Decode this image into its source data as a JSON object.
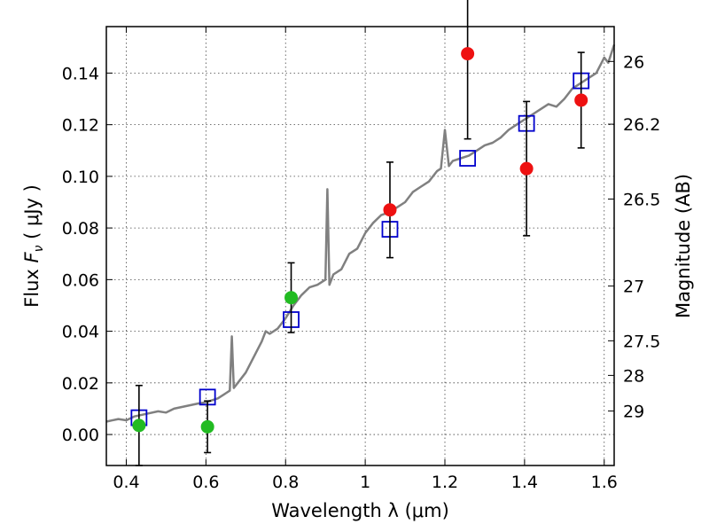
{
  "chart_data": {
    "type": "scatter",
    "title": "",
    "xlabel": "Wavelength  λ (μm)",
    "ylabel": "Flux  F_ν  ( μJy )",
    "ylabel_right": "Magnitude (AB)",
    "xlim": [
      0.35,
      1.625
    ],
    "ylim": [
      -0.012,
      0.158
    ],
    "grid": true,
    "x_ticks": [
      0.4,
      0.6,
      0.8,
      1.0,
      1.2,
      1.4,
      1.6
    ],
    "x_tick_labels": [
      "0.4",
      "0.6",
      "0.8",
      "1",
      "1.2",
      "1.4",
      "1.6"
    ],
    "y_ticks": [
      0.0,
      0.02,
      0.04,
      0.06,
      0.08,
      0.1,
      0.12,
      0.14
    ],
    "y_tick_labels": [
      "0.00",
      "0.02",
      "0.04",
      "0.06",
      "0.08",
      "0.10",
      "0.12",
      "0.14"
    ],
    "right_ticks": [
      {
        "label": "26",
        "flux": 0.1445
      },
      {
        "label": "26.2",
        "flux": 0.1202
      },
      {
        "label": "26.5",
        "flux": 0.0912
      },
      {
        "label": "27",
        "flux": 0.0575
      },
      {
        "label": "27.5",
        "flux": 0.0363
      },
      {
        "label": "28",
        "flux": 0.0229
      },
      {
        "label": "29",
        "flux": 0.0091
      }
    ],
    "model_spectrum": {
      "color": "#808080",
      "x": [
        0.35,
        0.38,
        0.4,
        0.42,
        0.45,
        0.48,
        0.5,
        0.52,
        0.55,
        0.58,
        0.6,
        0.63,
        0.65,
        0.66,
        0.665,
        0.67,
        0.68,
        0.7,
        0.72,
        0.74,
        0.75,
        0.76,
        0.78,
        0.8,
        0.82,
        0.84,
        0.86,
        0.88,
        0.9,
        0.905,
        0.91,
        0.915,
        0.92,
        0.94,
        0.96,
        0.98,
        1.0,
        1.02,
        1.04,
        1.06,
        1.08,
        1.1,
        1.12,
        1.14,
        1.16,
        1.18,
        1.19,
        1.2,
        1.21,
        1.22,
        1.24,
        1.26,
        1.28,
        1.3,
        1.32,
        1.34,
        1.36,
        1.38,
        1.4,
        1.42,
        1.44,
        1.46,
        1.48,
        1.5,
        1.52,
        1.54,
        1.56,
        1.58,
        1.6,
        1.61,
        1.625
      ],
      "y": [
        0.005,
        0.006,
        0.0055,
        0.007,
        0.008,
        0.009,
        0.0085,
        0.01,
        0.011,
        0.012,
        0.0125,
        0.014,
        0.016,
        0.017,
        0.038,
        0.018,
        0.02,
        0.024,
        0.03,
        0.036,
        0.04,
        0.039,
        0.041,
        0.045,
        0.05,
        0.054,
        0.057,
        0.058,
        0.06,
        0.095,
        0.058,
        0.06,
        0.062,
        0.064,
        0.07,
        0.072,
        0.078,
        0.082,
        0.085,
        0.086,
        0.088,
        0.09,
        0.094,
        0.096,
        0.098,
        0.102,
        0.103,
        0.118,
        0.104,
        0.106,
        0.107,
        0.108,
        0.11,
        0.112,
        0.113,
        0.115,
        0.118,
        0.12,
        0.122,
        0.124,
        0.126,
        0.128,
        0.127,
        0.13,
        0.134,
        0.136,
        0.138,
        0.14,
        0.146,
        0.144,
        0.151
      ]
    },
    "model_boxes": {
      "color": "#0000cc",
      "x": [
        0.432,
        0.604,
        0.814,
        1.062,
        1.257,
        1.405,
        1.542
      ],
      "y": [
        0.0065,
        0.0145,
        0.0445,
        0.0795,
        0.107,
        0.1205,
        0.137
      ]
    },
    "observed_optical": {
      "color": "#22bb22",
      "x": [
        0.432,
        0.604,
        0.814
      ],
      "y": [
        0.0035,
        0.003,
        0.053
      ],
      "err": [
        0.0155,
        0.01,
        0.0135
      ]
    },
    "observed_nir": {
      "color": "#ee1111",
      "x": [
        1.062,
        1.257,
        1.405,
        1.542
      ],
      "y": [
        0.087,
        0.1475,
        0.103,
        0.1295
      ],
      "err": [
        0.0185,
        0.033,
        0.026,
        0.0185
      ]
    }
  }
}
